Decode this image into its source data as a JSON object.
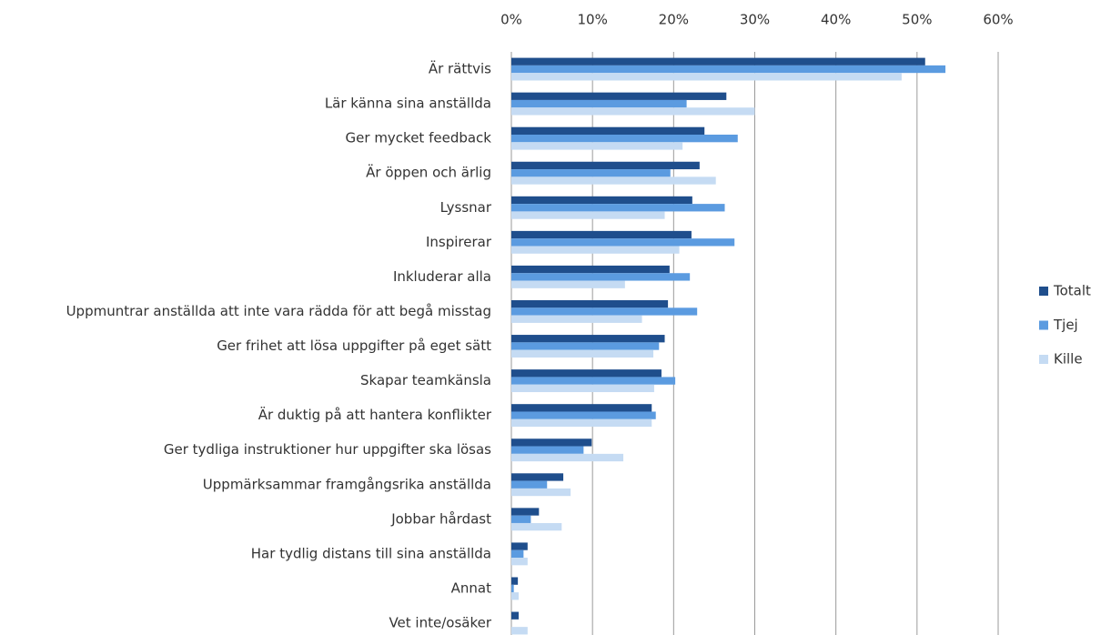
{
  "chart_data": {
    "type": "hbar",
    "categories": [
      "Är rättvis",
      "Lär känna sina anställda",
      "Ger mycket feedback",
      "Är öppen och ärlig",
      "Lyssnar",
      "Inspirerar",
      "Inkluderar alla",
      "Uppmuntrar anställda att inte vara rädda för att begå misstag",
      "Ger frihet att lösa uppgifter på eget sätt",
      "Skapar teamkänsla",
      "Är duktig på att hantera konflikter",
      "Ger tydliga instruktioner  hur uppgifter ska lösas",
      "Uppmärksammar framgångsrika anställda",
      "Jobbar hårdast",
      "Har tydlig distans till sina anställda",
      "Annat",
      "Vet inte/osäker"
    ],
    "series": [
      {
        "name": "Totalt",
        "color": "#1f4e8c",
        "values": [
          51.0,
          26.5,
          23.8,
          23.2,
          22.3,
          22.2,
          19.5,
          19.3,
          18.9,
          18.5,
          17.3,
          9.9,
          6.4,
          3.4,
          2.0,
          0.8,
          0.9
        ]
      },
      {
        "name": "Tjej",
        "color": "#5b9be0",
        "values": [
          53.5,
          21.6,
          27.9,
          19.6,
          26.3,
          27.5,
          22.0,
          22.9,
          18.2,
          20.2,
          17.8,
          8.9,
          4.4,
          2.4,
          1.5,
          0.3,
          0
        ]
      },
      {
        "name": "Kille",
        "color": "#c5dbf3",
        "values": [
          48.1,
          30.0,
          21.1,
          25.2,
          18.9,
          20.7,
          14.0,
          16.1,
          17.5,
          17.6,
          17.3,
          13.8,
          7.3,
          6.2,
          2.0,
          0.9,
          2.0
        ]
      }
    ],
    "xlim": [
      0,
      60
    ],
    "xticks": [
      {
        "value": 0,
        "label": "0%"
      },
      {
        "value": 10,
        "label": "10%"
      },
      {
        "value": 20,
        "label": "20%"
      },
      {
        "value": 30,
        "label": "30%"
      },
      {
        "value": 40,
        "label": "40%"
      },
      {
        "value": 50,
        "label": "50%"
      },
      {
        "value": 60,
        "label": "60%"
      }
    ],
    "grid": true
  }
}
